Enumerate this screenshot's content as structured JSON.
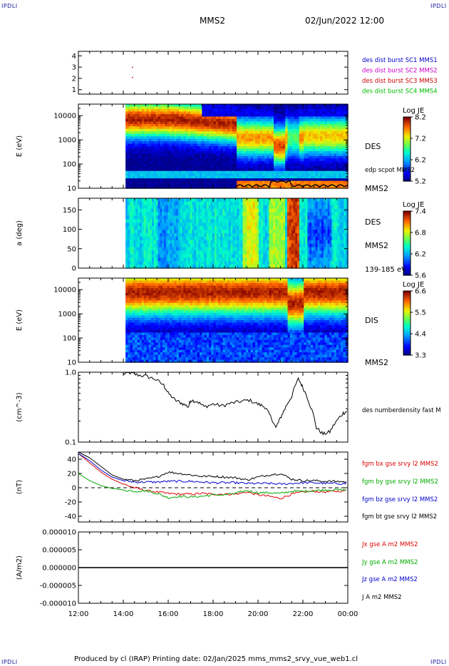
{
  "header": {
    "corner_left": "IPDLI",
    "corner_right": "IPDLI",
    "corner_bottom_left": "IPDLI",
    "corner_bottom_right": "IPDLI",
    "mission": "MMS2",
    "datetime": "02/Jun/2022 12:00"
  },
  "footer": {
    "text": "Produced by cl (IRAP)   Printing date: 02/Jan/2025   mms_mms2_srvy_vue_web1.cl"
  },
  "chart_data": [
    {
      "type": "scatter",
      "panel": "spacecraft",
      "y_ticks": [
        "4",
        "3",
        "2",
        "1"
      ],
      "ylim": [
        0.6,
        4.4
      ],
      "legend": [
        {
          "text": "des dist burst SC1 MMS1",
          "color": "#0000cc"
        },
        {
          "text": "des dist burst SC2 MMS2",
          "color": "#cc00cc"
        },
        {
          "text": "des dist burst SC3 MMS3",
          "color": "#cc0000"
        },
        {
          "text": "des dist burst SC4 MMS4",
          "color": "#00bb00"
        }
      ],
      "points": [
        {
          "x": 14.4,
          "y": 3.0,
          "color": "#cc0000"
        },
        {
          "x": 14.4,
          "y": 2.1,
          "color": "#cc0000"
        }
      ]
    },
    {
      "type": "heatmap",
      "panel": "des-energy",
      "ylabel": "E (eV)",
      "y_scale": "log",
      "ylim": [
        10,
        30000
      ],
      "y_ticks": [
        "10000",
        "1000",
        "100",
        "10"
      ],
      "right_labels": [
        "DES",
        "edp scpot MMS2",
        "MMS2"
      ],
      "colorbar": {
        "title": "Log JE",
        "ticks": [
          "8.2",
          "7.2",
          "6.2",
          "5.2"
        ],
        "range": [
          5.2,
          8.2
        ]
      },
      "data_start_hour": 14.1,
      "overlay_line": "edp scpot MMS2"
    },
    {
      "type": "heatmap",
      "panel": "des-pitch-angle",
      "ylabel": "a (deg)",
      "ylim": [
        0,
        180
      ],
      "y_ticks": [
        "150",
        "100",
        "50",
        "0"
      ],
      "right_labels": [
        "DES",
        "MMS2",
        "139-185 eV"
      ],
      "colorbar": {
        "title": "Log JE",
        "ticks": [
          "7.4",
          "6.8",
          "6.2",
          "5.6"
        ],
        "range": [
          5.6,
          7.4
        ]
      },
      "data_start_hour": 14.1
    },
    {
      "type": "heatmap",
      "panel": "dis-energy",
      "ylabel": "E (eV)",
      "y_scale": "log",
      "ylim": [
        10,
        30000
      ],
      "y_ticks": [
        "10000",
        "1000",
        "100",
        "10"
      ],
      "right_labels": [
        "DIS",
        "MMS2"
      ],
      "colorbar": {
        "title": "Log JE",
        "ticks": [
          "6.6",
          "5.5",
          "4.4",
          "3.3"
        ],
        "range": [
          3.3,
          6.6
        ]
      },
      "data_start_hour": 14.1
    },
    {
      "type": "line",
      "panel": "density",
      "ylabel": "(cm^-3)",
      "y_scale": "log",
      "ylim": [
        0.1,
        1.0
      ],
      "y_ticks": [
        "1.0",
        "0.1"
      ],
      "series": [
        {
          "name": "des numberdensity fast M",
          "color": "#000000",
          "x": [
            14.0,
            14.3,
            14.6,
            15.0,
            15.4,
            15.8,
            16.0,
            16.3,
            16.6,
            16.9,
            17.0,
            17.3,
            17.6,
            18.0,
            18.4,
            18.8,
            19.2,
            19.6,
            20.0,
            20.3,
            20.5,
            20.8,
            21.0,
            21.2,
            21.5,
            21.8,
            22.0,
            22.3,
            22.6,
            22.9,
            23.2,
            23.5,
            23.8,
            24.0
          ],
          "y": [
            0.95,
            0.98,
            0.92,
            0.88,
            0.8,
            0.65,
            0.5,
            0.4,
            0.36,
            0.32,
            0.4,
            0.38,
            0.32,
            0.35,
            0.33,
            0.36,
            0.38,
            0.4,
            0.35,
            0.32,
            0.25,
            0.16,
            0.22,
            0.3,
            0.45,
            0.8,
            0.6,
            0.35,
            0.16,
            0.13,
            0.14,
            0.2,
            0.26,
            0.28
          ]
        }
      ]
    },
    {
      "type": "line",
      "panel": "fgm",
      "ylabel": "(nT)",
      "ylim": [
        -48,
        50
      ],
      "y_ticks": [
        "40",
        "20",
        "0",
        "-20",
        "-40"
      ],
      "series": [
        {
          "name": "fgm bx gse srvy l2 MMS2",
          "color": "#dd0000",
          "x": [
            12.0,
            12.5,
            13.0,
            13.5,
            14.0,
            14.5,
            15.0,
            15.5,
            16.0,
            16.5,
            17.0,
            17.5,
            18.0,
            18.5,
            19.0,
            19.5,
            20.0,
            20.5,
            21.0,
            21.5,
            22.0,
            22.5,
            23.0,
            23.5,
            24.0
          ],
          "y": [
            48,
            35,
            22,
            12,
            5,
            0,
            -4,
            -6,
            -8,
            -9,
            -9,
            -8,
            -9,
            -9,
            -9,
            -6,
            -10,
            -12,
            -15,
            -9,
            -6,
            -5,
            -6,
            -5,
            -4
          ]
        },
        {
          "name": "fgm by gse srvy l2 MMS2",
          "color": "#00aa00",
          "x": [
            12.0,
            12.5,
            13.0,
            13.5,
            14.0,
            14.5,
            15.0,
            15.5,
            16.0,
            16.5,
            17.0,
            17.5,
            18.0,
            18.5,
            19.0,
            19.5,
            20.0,
            20.5,
            21.0,
            21.5,
            22.0,
            22.5,
            23.0,
            23.5,
            24.0
          ],
          "y": [
            20,
            10,
            3,
            -1,
            -3,
            -5,
            -4,
            -8,
            -14,
            -12,
            -13,
            -12,
            -10,
            -10,
            -8,
            -4,
            -7,
            -7,
            -8,
            -5,
            -5,
            -4,
            -3,
            -3,
            -3
          ]
        },
        {
          "name": "fgm bz gse srvy l2 MMS2",
          "color": "#0000cc",
          "x": [
            12.0,
            12.5,
            13.0,
            13.5,
            14.0,
            14.5,
            15.0,
            15.5,
            16.0,
            16.5,
            17.0,
            17.5,
            18.0,
            18.5,
            19.0,
            19.5,
            20.0,
            20.5,
            21.0,
            21.5,
            22.0,
            22.5,
            23.0,
            23.5,
            24.0
          ],
          "y": [
            48,
            38,
            25,
            15,
            10,
            8,
            8,
            8,
            9,
            9,
            9,
            8,
            7,
            7,
            7,
            6,
            6,
            6,
            5,
            6,
            7,
            7,
            6,
            6,
            6
          ]
        },
        {
          "name": "fgm bt gse srvy l2 MMS2",
          "color": "#000000",
          "x": [
            12.0,
            12.5,
            13.0,
            13.5,
            14.0,
            14.5,
            15.0,
            15.5,
            16.0,
            16.5,
            17.0,
            17.5,
            18.0,
            18.5,
            19.0,
            19.5,
            20.0,
            20.5,
            21.0,
            21.5,
            22.0,
            22.5,
            23.0,
            23.5,
            24.0
          ],
          "y": [
            50,
            42,
            30,
            18,
            12,
            10,
            12,
            15,
            22,
            20,
            18,
            16,
            16,
            15,
            14,
            11,
            15,
            18,
            20,
            12,
            10,
            10,
            9,
            9,
            8
          ]
        }
      ]
    },
    {
      "type": "line",
      "panel": "current",
      "ylabel": "(A/m2)",
      "ylim": [
        -1e-05,
        1e-05
      ],
      "y_ticks": [
        "0.000010",
        "0.000005",
        "0.000000",
        "-0.000005",
        "-0.000010"
      ],
      "series": [
        {
          "name": "Jx gse A m2 MMS2",
          "color": "#dd0000",
          "x": [
            12,
            24
          ],
          "y": [
            0,
            0
          ]
        },
        {
          "name": "Jy gse A m2 MMS2",
          "color": "#00aa00",
          "x": [
            12,
            24
          ],
          "y": [
            0,
            0
          ]
        },
        {
          "name": "Jz gse A m2 MMS2",
          "color": "#0000cc",
          "x": [
            12,
            24
          ],
          "y": [
            0,
            0
          ]
        },
        {
          "name": "J A m2 MMS2",
          "color": "#000000",
          "x": [
            12,
            24
          ],
          "y": [
            0,
            0
          ]
        }
      ]
    }
  ],
  "x_axis": {
    "ticks": [
      "12:00",
      "14:00",
      "16:00",
      "18:00",
      "20:00",
      "22:00",
      "00:00"
    ],
    "xlim": [
      12,
      24
    ]
  }
}
